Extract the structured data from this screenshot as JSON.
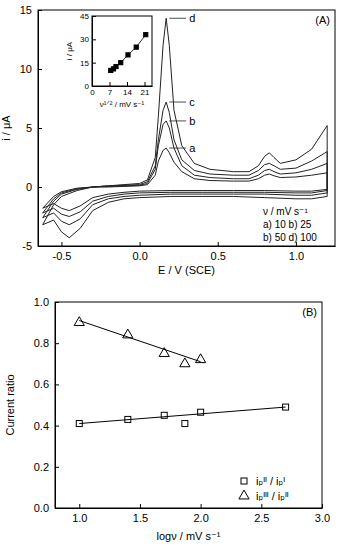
{
  "chart_data": [
    {
      "type": "line",
      "title": "(A)",
      "x_label": "E / V (SCE)",
      "y_label": "i / μA",
      "xlim": [
        -0.65,
        1.25
      ],
      "xticks": [
        {
          "value": -0.5,
          "label": "-0.5"
        },
        {
          "value": 0,
          "label": "0.0"
        },
        {
          "value": 0.5,
          "label": "0.5"
        },
        {
          "value": 1,
          "label": "1.0"
        }
      ],
      "ylim": [
        -5,
        15
      ],
      "yticks": [
        -5,
        0,
        5,
        10,
        15
      ],
      "x": [
        -0.62,
        -0.55,
        -0.5,
        -0.4,
        -0.3,
        -0.2,
        -0.1,
        0.0,
        0.05,
        0.1,
        0.12,
        0.15,
        0.17,
        0.19,
        0.22,
        0.27,
        0.35,
        0.45,
        0.6,
        0.7,
        0.76,
        0.8,
        0.83,
        0.86,
        0.9,
        1.0,
        1.1,
        1.2,
        1.2,
        1.1,
        1.0,
        0.8,
        0.6,
        0.4,
        0.2,
        0.0,
        -0.1,
        -0.2,
        -0.3,
        -0.38,
        -0.45,
        -0.5,
        -0.55,
        -0.62
      ],
      "series": [
        {
          "name": "a",
          "color": "#222222",
          "values": [
            -1.8,
            -0.8,
            -0.4,
            -0.1,
            0.0,
            0.0,
            0.05,
            0.1,
            0.2,
            1.0,
            2.2,
            3.1,
            3.3,
            2.9,
            2.1,
            1.3,
            0.7,
            0.55,
            0.5,
            0.5,
            0.7,
            1.0,
            1.1,
            0.95,
            0.8,
            0.85,
            1.0,
            1.2,
            -0.2,
            -0.35,
            -0.35,
            -0.3,
            -0.3,
            -0.3,
            -0.3,
            -0.35,
            -0.45,
            -0.6,
            -0.9,
            -1.6,
            -2.0,
            -1.8,
            -1.4,
            -1.8
          ]
        },
        {
          "name": "b",
          "color": "#222222",
          "values": [
            -2.2,
            -1.0,
            -0.5,
            -0.15,
            0.0,
            0.05,
            0.1,
            0.15,
            0.3,
            1.5,
            3.5,
            5.3,
            5.6,
            5.0,
            3.3,
            1.8,
            1.0,
            0.8,
            0.7,
            0.7,
            1.0,
            1.4,
            1.5,
            1.3,
            1.1,
            1.2,
            1.5,
            2.0,
            -0.3,
            -0.5,
            -0.5,
            -0.45,
            -0.45,
            -0.45,
            -0.45,
            -0.5,
            -0.6,
            -0.8,
            -1.2,
            -2.1,
            -2.5,
            -2.3,
            -1.8,
            -2.2
          ]
        },
        {
          "name": "c",
          "color": "#222222",
          "values": [
            -2.6,
            -1.2,
            -0.6,
            -0.2,
            0.0,
            0.1,
            0.15,
            0.2,
            0.45,
            1.8,
            4.0,
            6.5,
            7.2,
            6.3,
            4.0,
            2.3,
            1.4,
            1.1,
            1.0,
            1.0,
            1.4,
            1.9,
            2.0,
            1.8,
            1.5,
            1.6,
            2.2,
            3.0,
            -0.5,
            -0.7,
            -0.7,
            -0.6,
            -0.6,
            -0.6,
            -0.6,
            -0.7,
            -0.8,
            -1.0,
            -1.5,
            -2.7,
            -3.2,
            -2.9,
            -2.2,
            -2.6
          ]
        },
        {
          "name": "d",
          "color": "#222222",
          "values": [
            -3.2,
            -1.5,
            -0.8,
            -0.3,
            0.0,
            0.1,
            0.2,
            0.3,
            0.6,
            2.5,
            6.0,
            12.0,
            14.3,
            12.0,
            6.5,
            3.5,
            2.0,
            1.5,
            1.3,
            1.3,
            1.8,
            2.6,
            2.9,
            2.5,
            2.0,
            2.3,
            3.2,
            5.2,
            -0.8,
            -1.0,
            -1.0,
            -0.9,
            -0.8,
            -0.8,
            -0.8,
            -0.9,
            -1.0,
            -1.3,
            -2.0,
            -3.5,
            -4.3,
            -3.8,
            -2.8,
            -3.2
          ]
        }
      ],
      "annotations": [
        "ν / mV s⁻¹",
        "a) 10   b) 25",
        "b) 50   d) 100"
      ]
    },
    {
      "type": "line",
      "x_label": "ν¹ᐟ² / mV s⁻¹",
      "y_label": "i / μA",
      "xlim": [
        0,
        24
      ],
      "xticks": [
        0,
        7,
        14,
        21
      ],
      "ylim": [
        0,
        45
      ],
      "yticks": [
        0,
        15,
        30,
        45
      ],
      "series": [
        {
          "color": "#000000",
          "marker": "square",
          "x": [
            7.5,
            8.6,
            9.6,
            11.5,
            14.4,
            17.7,
            21.5
          ],
          "values": [
            10,
            11,
            12.5,
            15,
            20,
            25,
            33
          ]
        }
      ]
    },
    {
      "type": "scatter",
      "title": "(B)",
      "x_label": "logν / mV s⁻¹",
      "y_label": "Current ratio",
      "xlim": [
        0.8,
        3.0
      ],
      "xticks": [
        {
          "value": 1,
          "label": "1.0"
        },
        1.5,
        {
          "value": 2,
          "label": "2.0"
        },
        2.5,
        {
          "value": 3,
          "label": "3.0"
        }
      ],
      "ylim": [
        0,
        1
      ],
      "yticks": [
        {
          "value": 0,
          "label": "0.0"
        },
        0.2,
        0.4,
        0.6,
        0.8,
        {
          "value": 1,
          "label": "1.0"
        }
      ],
      "legend": "lower right",
      "series": [
        {
          "name": "iₚᴵᴵ / iₚᴵ",
          "color": "#000000",
          "marker": "square",
          "x": [
            1.0,
            1.4,
            1.7,
            1.87,
            2.0,
            2.7
          ],
          "values": [
            0.41,
            0.43,
            0.45,
            0.41,
            0.465,
            0.49
          ]
        },
        {
          "name": "iₚᴵᴵᴵ / iₚᴵᴵ",
          "color": "#000000",
          "marker": "triangle",
          "x": [
            1.0,
            1.4,
            1.7,
            1.87,
            2.0
          ],
          "values": [
            0.9,
            0.84,
            0.75,
            0.7,
            0.72
          ]
        },
        {
          "type": "line",
          "color": "#000000",
          "x": [
            1.0,
            2.7
          ],
          "values": [
            0.41,
            0.49
          ]
        },
        {
          "type": "line",
          "color": "#000000",
          "x": [
            1.0,
            2.0
          ],
          "values": [
            0.91,
            0.71
          ]
        }
      ]
    }
  ]
}
